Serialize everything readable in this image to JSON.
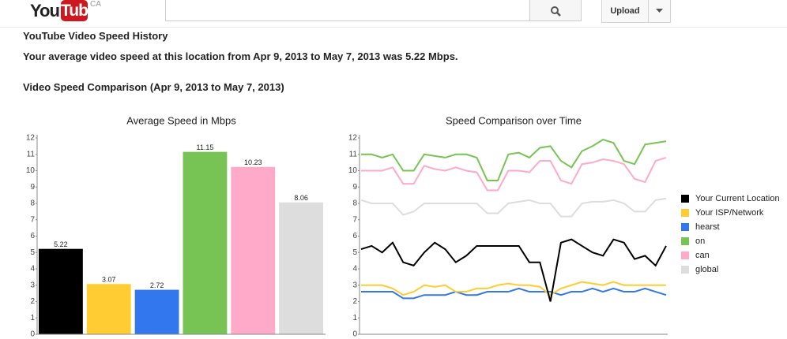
{
  "header": {
    "logo_left": "You",
    "logo_right": "Tube",
    "region": "CA",
    "upload": "Upload"
  },
  "page": {
    "title": "YouTube Video Speed History",
    "summary": "Your average video speed at this location from Apr 9, 2013 to May 7, 2013 was 5.22 Mbps.",
    "comparison_title": "Video Speed Comparison (Apr 9, 2013 to May 7, 2013)"
  },
  "chart_data": [
    {
      "type": "bar",
      "title": "Average Speed in Mbps",
      "values": [
        5.22,
        3.07,
        2.72,
        11.15,
        10.23,
        8.06
      ],
      "colors": [
        "#000000",
        "#ffcc33",
        "#3377ee",
        "#77c455",
        "#ffaac8",
        "#dddddd"
      ],
      "ylim": [
        0,
        12
      ],
      "yticks": [
        0,
        1,
        2,
        3,
        4,
        5,
        6,
        7,
        8,
        9,
        10,
        11,
        12
      ],
      "grid": false
    },
    {
      "type": "line",
      "title": "Speed Comparison over Time",
      "ylim": [
        0,
        12
      ],
      "yticks": [
        0,
        1,
        2,
        3,
        4,
        5,
        6,
        7,
        8,
        9,
        10,
        11,
        12
      ],
      "grid": false,
      "legend": "right",
      "series": [
        {
          "name": "Your Current Location",
          "color": "#000000",
          "values": [
            5.2,
            5.4,
            5,
            5.6,
            4.4,
            4.2,
            5,
            5.6,
            5.2,
            4.4,
            4.8,
            5.4,
            5.4,
            5.4,
            5.4,
            5.4,
            4.4,
            4.4,
            2,
            5.6,
            5.8,
            5.4,
            5,
            4.8,
            5.8,
            5.6,
            4.6,
            4.8,
            4.2,
            5.4
          ]
        },
        {
          "name": "Your ISP/Network",
          "color": "#ffcc33",
          "values": [
            3,
            3,
            3,
            2.8,
            2.4,
            2.6,
            3,
            2.9,
            3,
            2.6,
            2.6,
            2.8,
            2.8,
            3,
            3.1,
            3,
            3,
            2.9,
            2.4,
            2.8,
            3,
            3.2,
            3.1,
            3,
            3.2,
            3,
            3,
            3,
            3,
            3
          ]
        },
        {
          "name": "hearst",
          "color": "#3377ee",
          "values": [
            2.6,
            2.6,
            2.6,
            2.6,
            2.2,
            2.2,
            2.4,
            2.4,
            2.4,
            2.6,
            2.4,
            2.4,
            2.6,
            2.6,
            2.6,
            2.8,
            2.6,
            2.6,
            2.6,
            2.4,
            2.6,
            2.6,
            2.8,
            2.6,
            2.8,
            2.6,
            2.6,
            2.8,
            2.6,
            2.4
          ]
        },
        {
          "name": "on",
          "color": "#77c455",
          "values": [
            11,
            11,
            10.8,
            11,
            10,
            10,
            11,
            10.9,
            10.8,
            11,
            11,
            10.8,
            9.4,
            9.4,
            11,
            11.1,
            10.8,
            11.4,
            11.5,
            10.6,
            10.2,
            11.2,
            11.5,
            11.9,
            11.7,
            10.6,
            10.4,
            11.6,
            11.7,
            11.8
          ]
        },
        {
          "name": "can",
          "color": "#ffaac8",
          "values": [
            10,
            10,
            10,
            10.2,
            9.2,
            9.2,
            10.3,
            10.1,
            10,
            10.2,
            10,
            9.9,
            8.8,
            8.8,
            10,
            10,
            9.9,
            10.6,
            10.6,
            9.4,
            9.2,
            10.4,
            10.5,
            10.7,
            10.6,
            10.4,
            9.5,
            9.3,
            10.6,
            10.8
          ]
        },
        {
          "name": "global",
          "color": "#dddddd",
          "values": [
            8.2,
            8,
            8,
            8,
            7.3,
            7.5,
            8,
            8,
            8,
            8,
            8,
            8,
            7.4,
            7.4,
            8,
            8.1,
            8.2,
            8,
            8,
            7.2,
            7.2,
            8,
            8.1,
            8.1,
            8.2,
            8,
            7.5,
            7.5,
            8.2,
            8.3
          ]
        }
      ]
    }
  ]
}
